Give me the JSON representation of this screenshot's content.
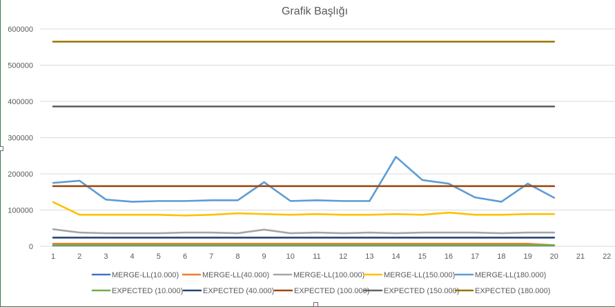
{
  "chart_data": {
    "type": "line",
    "title": "Grafik Başlığı",
    "xlabel": "",
    "ylabel": "",
    "ylim": [
      0,
      600000
    ],
    "yticks": [
      0,
      100000,
      200000,
      300000,
      400000,
      500000,
      600000
    ],
    "xlim": [
      1,
      22
    ],
    "xticks": [
      1,
      2,
      3,
      4,
      5,
      6,
      7,
      8,
      9,
      10,
      11,
      12,
      13,
      14,
      15,
      16,
      17,
      18,
      19,
      20,
      21,
      22
    ],
    "grid": true,
    "legend_position": "bottom",
    "x": [
      1,
      2,
      3,
      4,
      5,
      6,
      7,
      8,
      9,
      10,
      11,
      12,
      13,
      14,
      15,
      16,
      17,
      18,
      19,
      20
    ],
    "series": [
      {
        "name": "MERGE-LL(10.000)",
        "color": "#4472c4",
        "values": [
          2000,
          2000,
          2000,
          2000,
          2000,
          2000,
          2000,
          2000,
          2000,
          2000,
          2000,
          2000,
          2000,
          2000,
          2000,
          2000,
          2000,
          2000,
          2000,
          2000
        ]
      },
      {
        "name": "MERGE-LL(40.000)",
        "color": "#ed7d31",
        "values": [
          7000,
          7000,
          7000,
          7000,
          7000,
          7000,
          7000,
          7000,
          7000,
          7000,
          7000,
          7000,
          7000,
          7000,
          7000,
          7000,
          7000,
          7000,
          7000,
          3000
        ]
      },
      {
        "name": "MERGE-LL(100.000)",
        "color": "#a5a5a5",
        "values": [
          47000,
          38000,
          36000,
          36000,
          36000,
          38000,
          38000,
          36000,
          46000,
          36000,
          38000,
          36000,
          38000,
          36000,
          38000,
          38000,
          38000,
          36000,
          38000,
          38000
        ]
      },
      {
        "name": "MERGE-LL(150.000)",
        "color": "#ffc000",
        "values": [
          122000,
          87000,
          87000,
          87000,
          87000,
          85000,
          87000,
          91000,
          89000,
          87000,
          89000,
          87000,
          87000,
          89000,
          87000,
          93000,
          87000,
          87000,
          89000,
          89000
        ]
      },
      {
        "name": "MERGE-LL(180.000)",
        "color": "#5b9bd5",
        "values": [
          175000,
          181000,
          129000,
          123000,
          125000,
          125000,
          127000,
          127000,
          177000,
          125000,
          127000,
          125000,
          125000,
          247000,
          183000,
          173000,
          135000,
          123000,
          173000,
          134000
        ]
      },
      {
        "name": "EXPECTED (10.000)",
        "color": "#70ad47",
        "values": [
          3000,
          3000,
          3000,
          3000,
          3000,
          3000,
          3000,
          3000,
          3000,
          3000,
          3000,
          3000,
          3000,
          3000,
          3000,
          3000,
          3000,
          3000,
          3000,
          3000
        ]
      },
      {
        "name": "EXPECTED (40.000)",
        "color": "#264478",
        "values": [
          24000,
          24000,
          24000,
          24000,
          24000,
          24000,
          24000,
          24000,
          24000,
          24000,
          24000,
          24000,
          24000,
          24000,
          24000,
          24000,
          24000,
          24000,
          24000,
          24000
        ]
      },
      {
        "name": "EXPECTED (100.000)",
        "color": "#9e480e",
        "values": [
          166000,
          166000,
          166000,
          166000,
          166000,
          166000,
          166000,
          166000,
          166000,
          166000,
          166000,
          166000,
          166000,
          166000,
          166000,
          166000,
          166000,
          166000,
          166000,
          166000
        ]
      },
      {
        "name": "EXPECTED (150.000)",
        "color": "#636363",
        "values": [
          386000,
          386000,
          386000,
          386000,
          386000,
          386000,
          386000,
          386000,
          386000,
          386000,
          386000,
          386000,
          386000,
          386000,
          386000,
          386000,
          386000,
          386000,
          386000,
          386000
        ]
      },
      {
        "name": "EXPECTED (180.000)",
        "color": "#997300",
        "values": [
          565000,
          565000,
          565000,
          565000,
          565000,
          565000,
          565000,
          565000,
          565000,
          565000,
          565000,
          565000,
          565000,
          565000,
          565000,
          565000,
          565000,
          565000,
          565000,
          565000
        ]
      }
    ]
  }
}
